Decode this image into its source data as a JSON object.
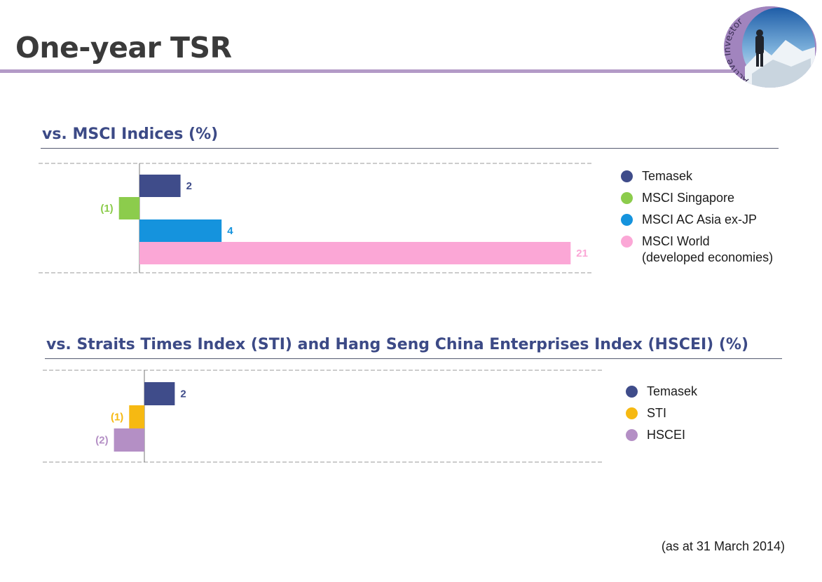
{
  "slide": {
    "title": "One-year TSR",
    "badge_text": "Active Investor",
    "footnote": "(as at 31 March 2014)"
  },
  "colors": {
    "title_rule": "#b39ac7",
    "section_title": "#3c4a86",
    "axis_line": "#777777"
  },
  "chart_data": [
    {
      "type": "bar",
      "orientation": "horizontal",
      "title": "vs. MSCI Indices (%)",
      "categories": [
        "Temasek",
        "MSCI Singapore",
        "MSCI AC Asia ex-JP",
        "MSCI World\n(developed economies)"
      ],
      "values": [
        2,
        -1,
        4,
        21
      ],
      "value_labels": [
        "2",
        "(1)",
        "4",
        "21"
      ],
      "colors": [
        "#3f4c8a",
        "#8ccc4c",
        "#1593dd",
        "#fba7d6"
      ],
      "xlim": [
        -5,
        22
      ],
      "legend": "right",
      "grid": false
    },
    {
      "type": "bar",
      "orientation": "horizontal",
      "title": "vs. Straits Times Index (STI) and Hang Seng China Enterprises Index (HSCEI) (%)",
      "categories": [
        "Temasek",
        "STI",
        "HSCEI"
      ],
      "values": [
        2,
        -1,
        -2
      ],
      "value_labels": [
        "2",
        "(1)",
        "(2)"
      ],
      "colors": [
        "#3f4c8a",
        "#f6b912",
        "#b48fc5"
      ],
      "xlim": [
        -5,
        22
      ],
      "legend": "right",
      "grid": false
    }
  ]
}
